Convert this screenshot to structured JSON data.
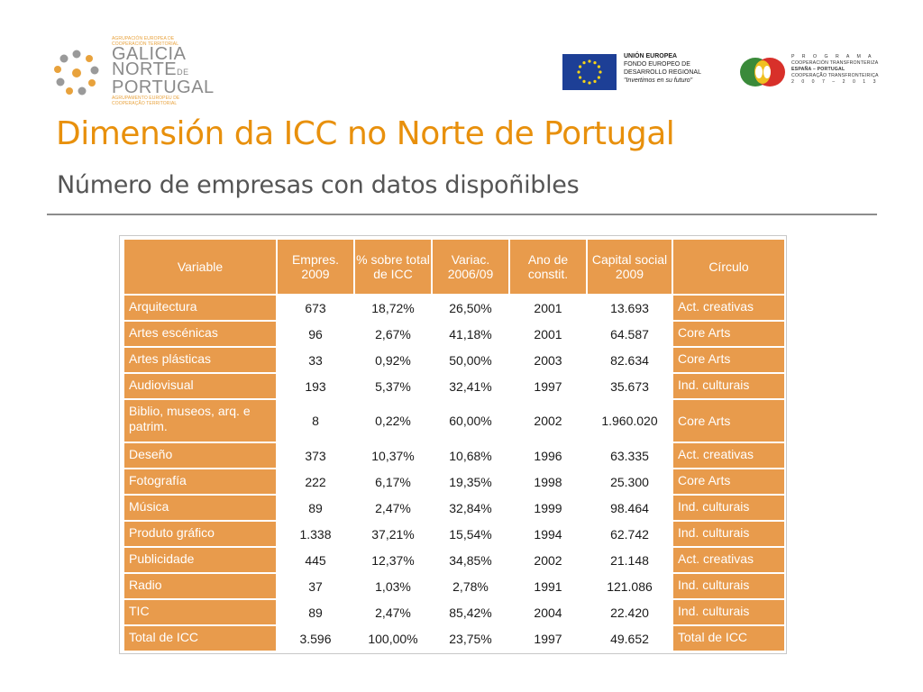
{
  "header": {
    "galicia_logo": {
      "small_top_1": "AGRUPACIÓN EUROPEA DE",
      "small_top_2": "COOPERACIÓN TERRITORIAL",
      "word_1": "GALICIA",
      "word_2": "NORTE",
      "word_2_suffix": "DE",
      "word_3": "PORTUGAL",
      "small_bottom_1": "AGRUPAMENTO EUROPEU DE",
      "small_bottom_2": "COOPERAÇÃO TERRITORIAL"
    },
    "eu_logo": {
      "line1": "UNIÓN EUROPEA",
      "line2": "FONDO EUROPEO DE",
      "line3": "DESARROLLO REGIONAL",
      "line4": "\"Invertimos en su futuro\""
    },
    "poctep_logo": {
      "line1": "P R O G R A M A",
      "line2": "COOPERACIÓN TRANSFRONTERIZA",
      "line3": "ESPAÑA – PORTUGAL",
      "line4": "COOPERAÇÃO TRANSFRONTEIRIÇA",
      "line5": "2 0 0 7 – 2 0 1 3"
    }
  },
  "title": "Dimensión da ICC no Norte de Portugal",
  "subtitle": "Número de empresas con datos dispoñibles",
  "table": {
    "headers": [
      "Variable",
      "Empres. 2009",
      "% sobre total de ICC",
      "Variac. 2006/09",
      "Ano de constit.",
      "Capital social 2009",
      "Círculo"
    ],
    "rows": [
      [
        "Arquitectura",
        "673",
        "18,72%",
        "26,50%",
        "2001",
        "13.693",
        "Act. creativas"
      ],
      [
        "Artes escénicas",
        "96",
        "2,67%",
        "41,18%",
        "2001",
        "64.587",
        "Core Arts"
      ],
      [
        "Artes plásticas",
        "33",
        "0,92%",
        "50,00%",
        "2003",
        "82.634",
        "Core Arts"
      ],
      [
        "Audiovisual",
        "193",
        "5,37%",
        "32,41%",
        "1997",
        "35.673",
        "Ind. culturais"
      ],
      [
        "Biblio, museos, arq. e patrim.",
        "8",
        "0,22%",
        "60,00%",
        "2002",
        "1.960.020",
        "Core Arts"
      ],
      [
        "Deseño",
        "373",
        "10,37%",
        "10,68%",
        "1996",
        "63.335",
        "Act. creativas"
      ],
      [
        "Fotografía",
        "222",
        "6,17%",
        "19,35%",
        "1998",
        "25.300",
        "Core Arts"
      ],
      [
        "Música",
        "89",
        "2,47%",
        "32,84%",
        "1999",
        "98.464",
        "Ind. culturais"
      ],
      [
        "Produto gráfico",
        "1.338",
        "37,21%",
        "15,54%",
        "1994",
        "62.742",
        "Ind. culturais"
      ],
      [
        "Publicidade",
        "445",
        "12,37%",
        "34,85%",
        "2002",
        "21.148",
        "Act. creativas"
      ],
      [
        "Radio",
        "37",
        "1,03%",
        "2,78%",
        "1991",
        "121.086",
        "Ind. culturais"
      ],
      [
        "TIC",
        "89",
        "2,47%",
        "85,42%",
        "2004",
        "22.420",
        "Ind. culturais"
      ],
      [
        "Total de ICC",
        "3.596",
        "100,00%",
        "23,75%",
        "1997",
        "49.652",
        "Total de ICC"
      ]
    ]
  },
  "colors": {
    "accent_orange": "#e8900c",
    "table_orange": "#e89b4c",
    "subtitle_gray": "#555555",
    "eu_blue": "#1d3f96"
  }
}
